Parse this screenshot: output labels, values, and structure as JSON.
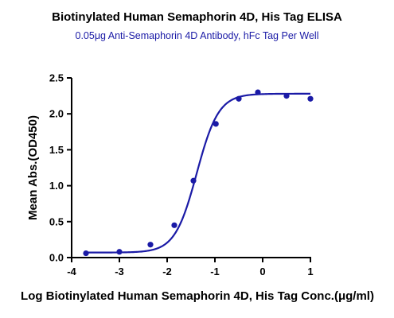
{
  "chart_data": {
    "type": "scatter",
    "title": "Biotinylated Human Semaphorin 4D, His Tag ELISA",
    "subtitle": "0.05μg Anti-Semaphorin 4D Antibody, hFc Tag Per Well",
    "xlabel": "Log Biotinylated Human Semaphorin 4D, His Tag Conc.(μg/ml)",
    "ylabel": "Mean Abs.(OD450)",
    "xlim": [
      -4,
      1
    ],
    "ylim": [
      0,
      2.5
    ],
    "x_ticks": [
      "-4",
      "-3",
      "-2",
      "-1",
      "0",
      "1"
    ],
    "y_ticks": [
      "0.0",
      "0.5",
      "1.0",
      "1.5",
      "2.0",
      "2.5"
    ],
    "grid": false,
    "color": "#1a1aa6",
    "series": [
      {
        "x": [
          -3.7,
          -3.0,
          -2.35,
          -1.85,
          -1.45,
          -0.98,
          -0.5,
          -0.1,
          0.5,
          1.0
        ],
        "y": [
          0.06,
          0.08,
          0.18,
          0.45,
          1.07,
          1.86,
          2.21,
          2.3,
          2.25,
          2.21
        ]
      }
    ],
    "fit": {
      "model": "4PL",
      "bottom": 0.07,
      "top": 2.28,
      "logEC50": -1.38,
      "hill": 1.9
    }
  }
}
